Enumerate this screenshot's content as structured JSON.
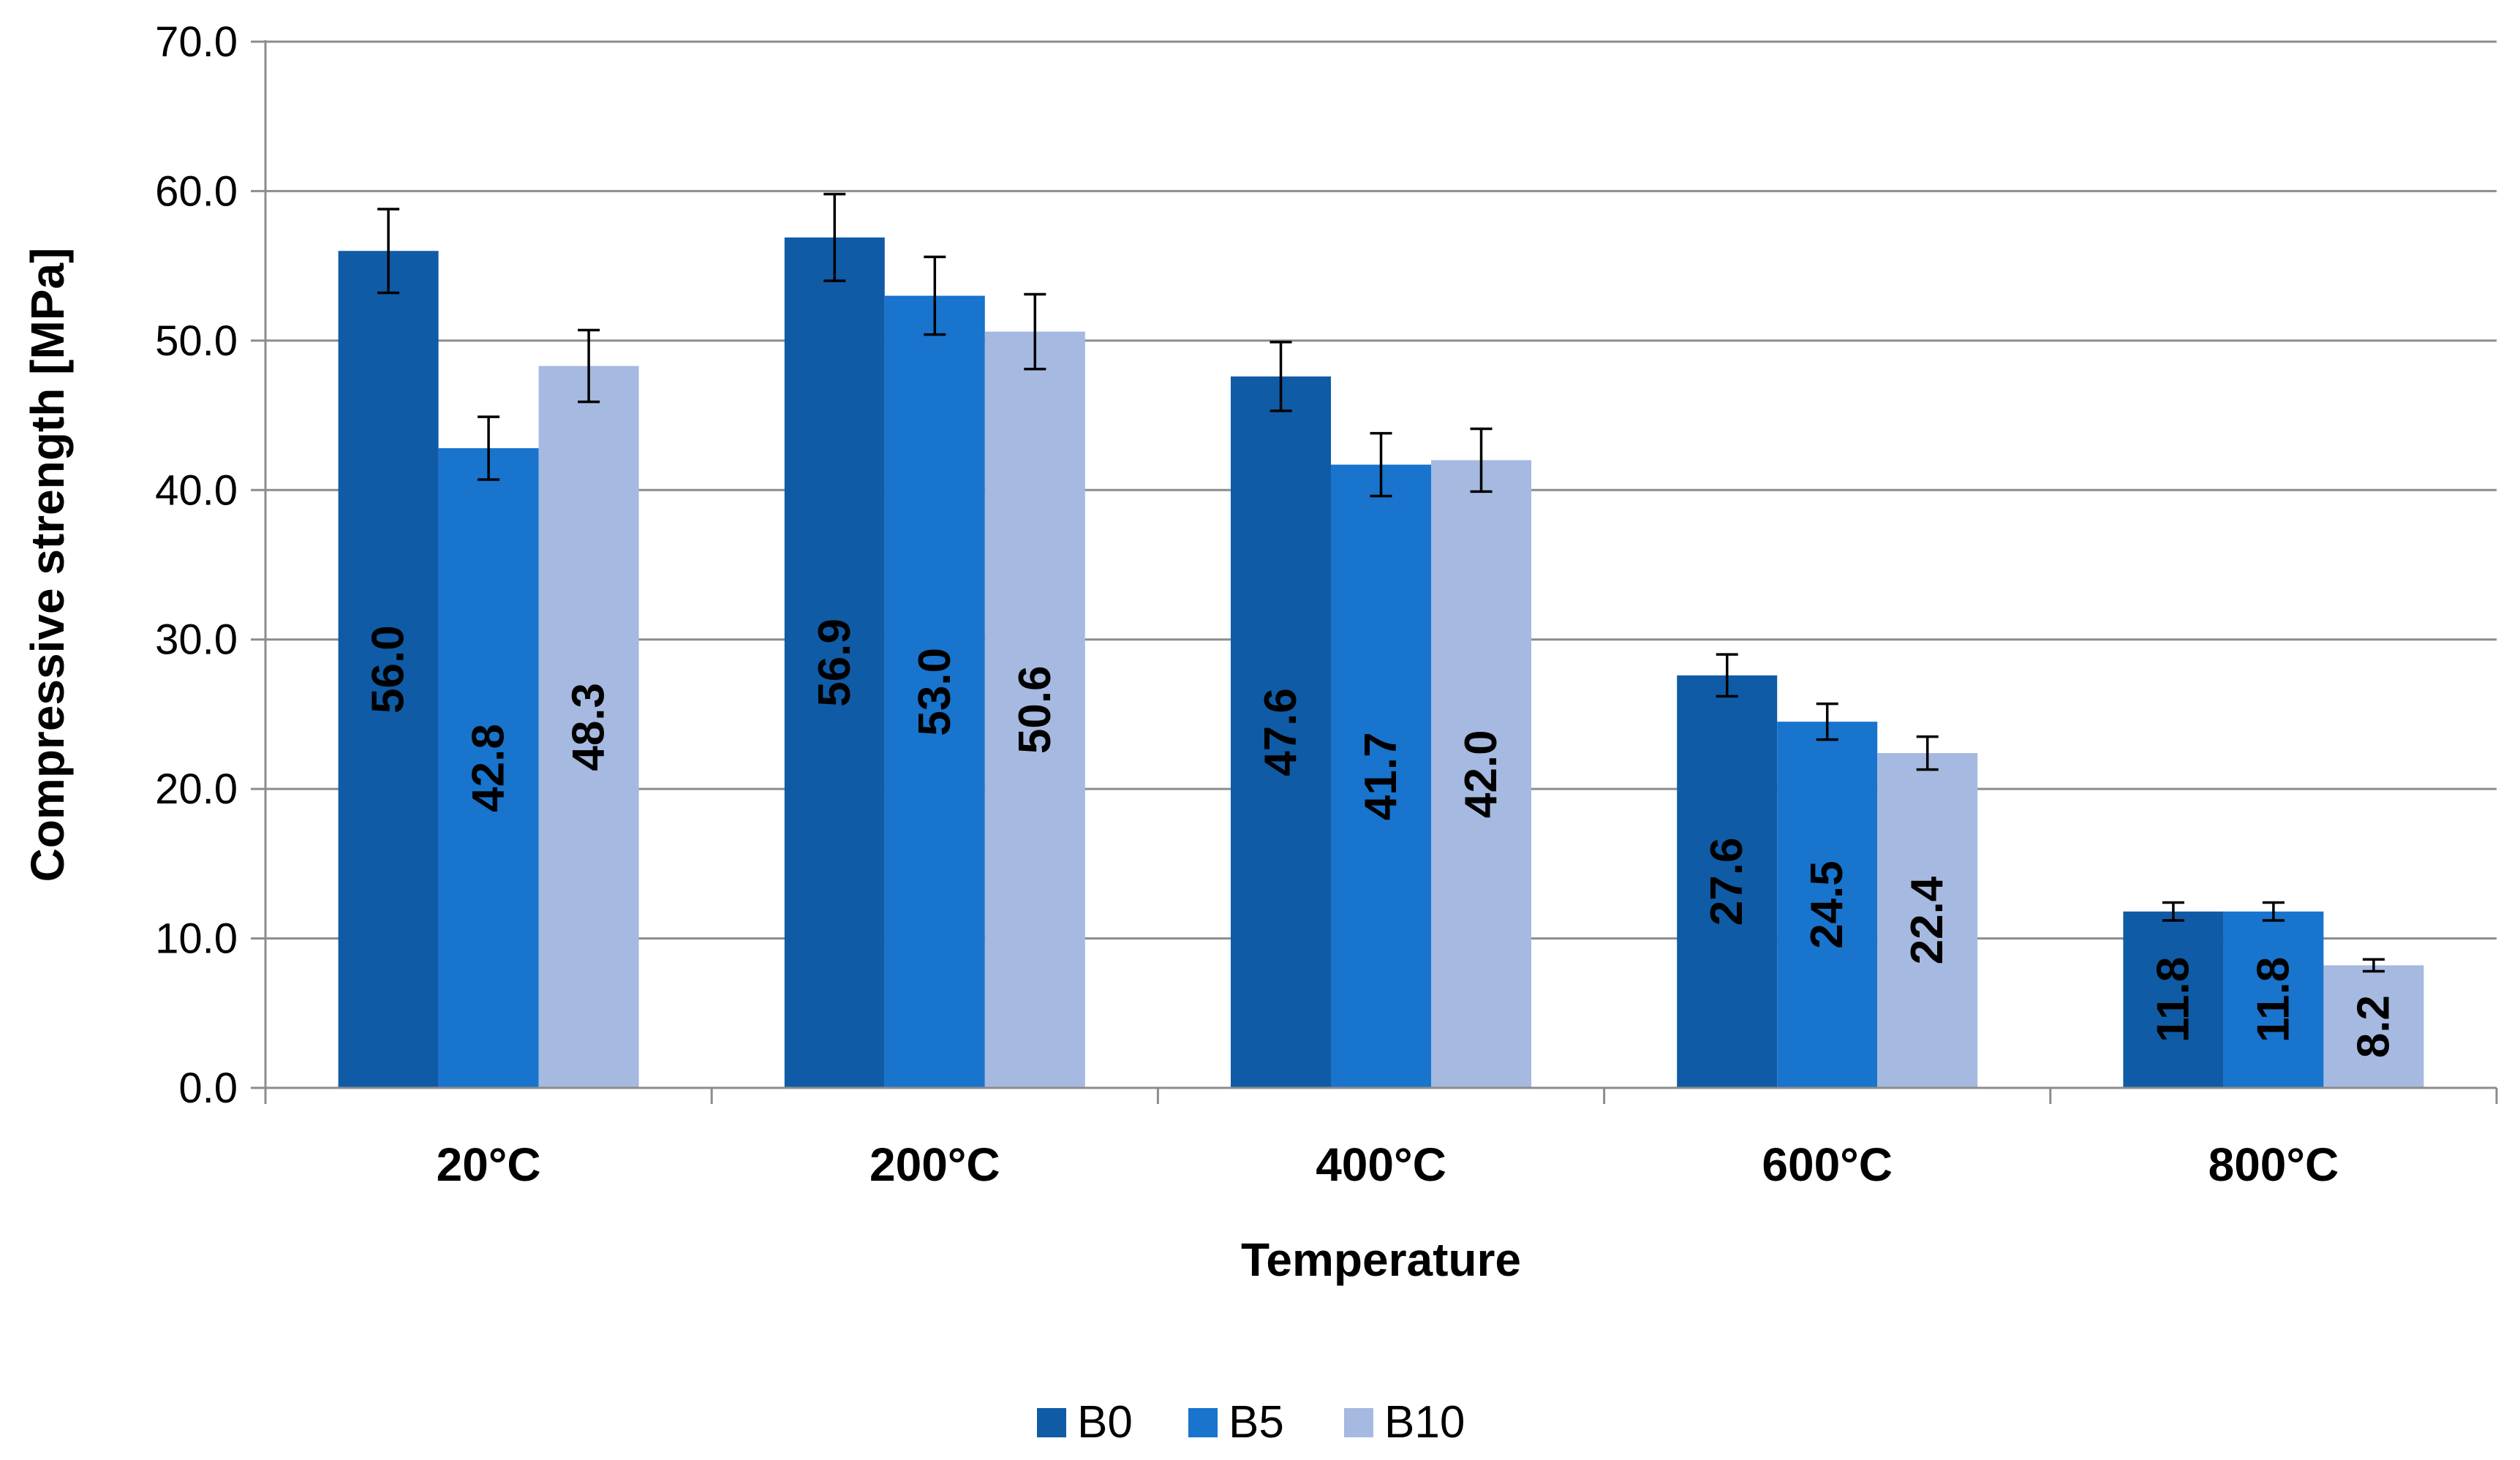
{
  "chart_data": {
    "type": "bar",
    "title": "",
    "xlabel": "Temperature",
    "ylabel": "Compressive strength [MPa]",
    "ylim": [
      0,
      70
    ],
    "ytick_step": 10,
    "ytick_labels": [
      "0.0",
      "10.0",
      "20.0",
      "30.0",
      "40.0",
      "50.0",
      "60.0",
      "70.0"
    ],
    "grid": true,
    "legend_position": "bottom",
    "categories": [
      "20°C",
      "200°C",
      "400°C",
      "600°C",
      "800°C"
    ],
    "series": [
      {
        "name": "B0",
        "color": "#0F5BA6",
        "values": [
          56.0,
          56.9,
          47.6,
          27.6,
          11.8
        ],
        "labels": [
          "56.0",
          "56.9",
          "47.6",
          "27.6",
          "11.8"
        ],
        "errors": [
          2.8,
          2.9,
          2.3,
          1.4,
          0.6
        ]
      },
      {
        "name": "B5",
        "color": "#1874CD",
        "values": [
          42.8,
          53.0,
          41.7,
          24.5,
          11.8
        ],
        "labels": [
          "42.8",
          "53.0",
          "41.7",
          "24.5",
          "11.8"
        ],
        "errors": [
          2.1,
          2.6,
          2.1,
          1.2,
          0.6
        ]
      },
      {
        "name": "B10",
        "color": "#A6B9E0",
        "values": [
          48.3,
          50.6,
          42.0,
          22.4,
          8.2
        ],
        "labels": [
          "48.3",
          "50.6",
          "42.0",
          "22.4",
          "8.2"
        ],
        "errors": [
          2.4,
          2.5,
          2.1,
          1.1,
          0.4
        ]
      }
    ]
  }
}
